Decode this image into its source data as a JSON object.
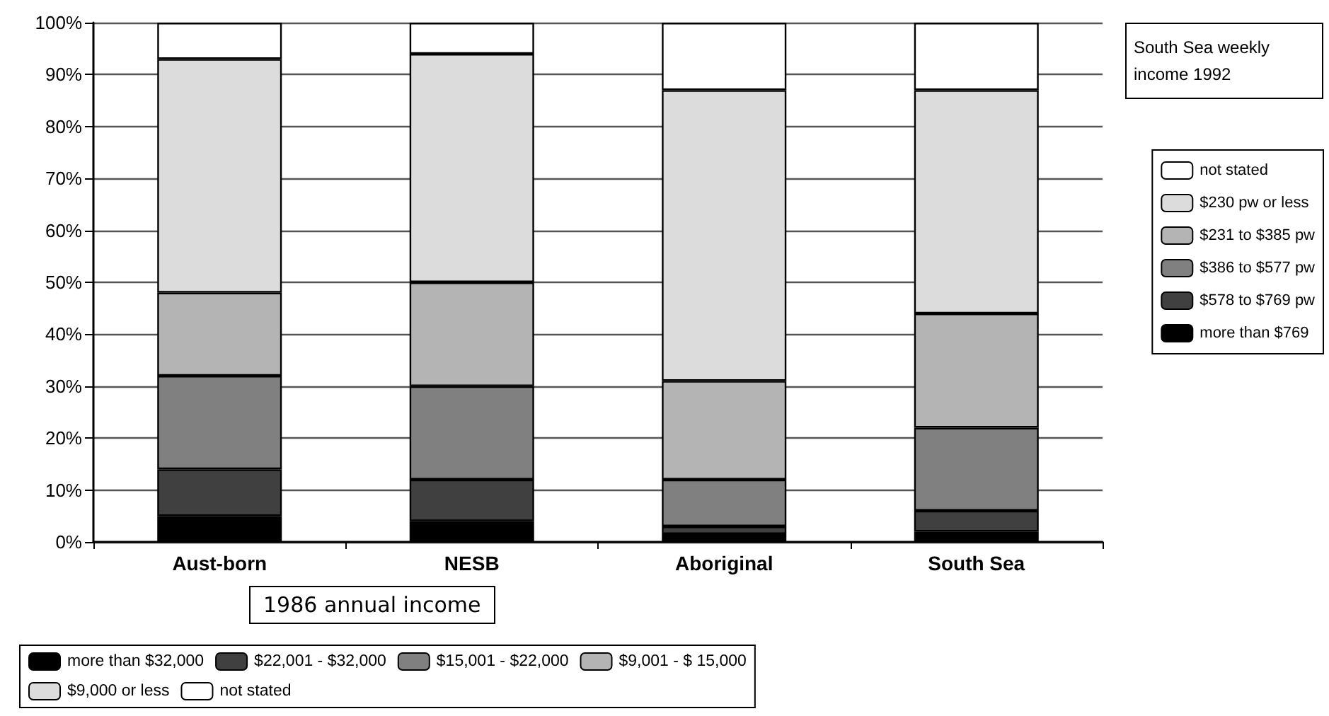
{
  "chart_data": {
    "type": "bar",
    "stacked": true,
    "categories": [
      "Aust-born",
      "NESB",
      "Aboriginal",
      "South Sea"
    ],
    "ylim": [
      0,
      100
    ],
    "yticks": [
      {
        "value": 0,
        "label": "0%"
      },
      {
        "value": 10,
        "label": "10%"
      },
      {
        "value": 20,
        "label": "20%"
      },
      {
        "value": 30,
        "label": "30%"
      },
      {
        "value": 40,
        "label": "40%"
      },
      {
        "value": 50,
        "label": "50%"
      },
      {
        "value": 60,
        "label": "60%"
      },
      {
        "value": 70,
        "label": "70%"
      },
      {
        "value": 80,
        "label": "80%"
      },
      {
        "value": 90,
        "label": "90%"
      },
      {
        "value": 100,
        "label": "100%"
      }
    ],
    "grid": "y",
    "legend": "bottom",
    "legend_title": "1986 annual income",
    "annotations": [
      "South Sea weekly income 1992"
    ],
    "series": [
      {
        "name": "more than $32,000",
        "color": "#000000",
        "values": [
          5,
          4,
          1.5,
          null
        ]
      },
      {
        "name": "$22,001 - $32,000",
        "color": "#404040",
        "values": [
          9,
          8,
          1.5,
          null
        ]
      },
      {
        "name": "$15,001 - $22,000",
        "color": "#808080",
        "values": [
          18,
          18,
          9,
          null
        ]
      },
      {
        "name": "$9,001 - $ 15,000",
        "color": "#b4b4b4",
        "values": [
          16,
          20,
          19,
          null
        ]
      },
      {
        "name": "$9,000 or less",
        "color": "#dcdcdc",
        "values": [
          45,
          44,
          56,
          null
        ]
      },
      {
        "name": "not stated",
        "color": "#ffffff",
        "values": [
          7,
          6,
          13,
          null
        ]
      },
      {
        "name": "more than $769",
        "color": "#000000",
        "values": [
          null,
          null,
          null,
          2
        ]
      },
      {
        "name": "$578 to $769 pw",
        "color": "#404040",
        "values": [
          null,
          null,
          null,
          4
        ]
      },
      {
        "name": "$386 to $577 pw",
        "color": "#808080",
        "values": [
          null,
          null,
          null,
          16
        ]
      },
      {
        "name": "$231 to $385 pw",
        "color": "#b4b4b4",
        "values": [
          null,
          null,
          null,
          22
        ]
      },
      {
        "name": "$230 pw or less",
        "color": "#dcdcdc",
        "values": [
          null,
          null,
          null,
          43
        ]
      },
      {
        "name": "not stated ",
        "color": "#ffffff",
        "values": [
          null,
          null,
          null,
          13
        ]
      }
    ]
  }
}
